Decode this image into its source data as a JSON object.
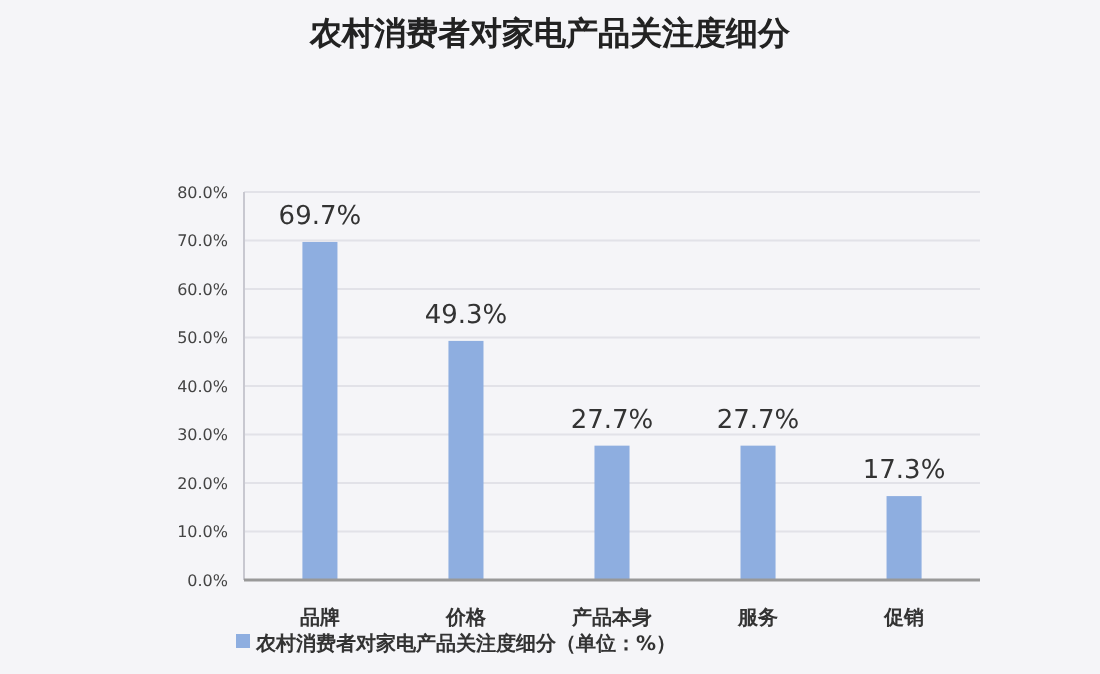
{
  "chart_data": {
    "type": "bar",
    "title": "农村消费者对家电产品关注度细分",
    "categories": [
      "品牌",
      "价格",
      "产品本身",
      "服务",
      "促销"
    ],
    "series": [
      {
        "name": "农村消费者对家电产品关注度细分（单位：%）",
        "color": "#8eaee0",
        "values": [
          69.7,
          49.3,
          27.7,
          27.7,
          17.3
        ],
        "value_labels": [
          "69.7%",
          "49.3%",
          "27.7%",
          "27.7%",
          "17.3%"
        ]
      }
    ],
    "ylim": [
      0,
      80
    ],
    "yticks": [
      {
        "value": 0,
        "label": "0.0%"
      },
      {
        "value": 10,
        "label": "10.0%"
      },
      {
        "value": 20,
        "label": "20.0%"
      },
      {
        "value": 30,
        "label": "30.0%"
      },
      {
        "value": 40,
        "label": "40.0%"
      },
      {
        "value": 50,
        "label": "50.0%"
      },
      {
        "value": 60,
        "label": "60.0%"
      },
      {
        "value": 70,
        "label": "70.0%"
      },
      {
        "value": 80,
        "label": "80.0%"
      }
    ],
    "grid": "y",
    "legend": "bottom left"
  }
}
